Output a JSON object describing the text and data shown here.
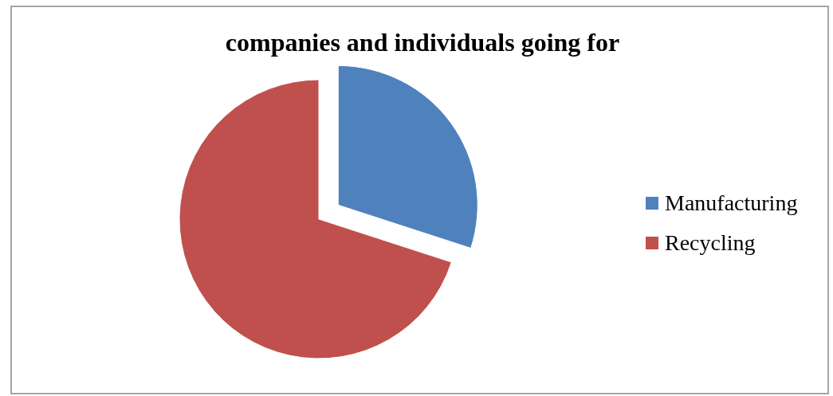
{
  "chart_data": {
    "type": "pie",
    "title": "companies and individuals going for",
    "categories": [
      "Manufacturing",
      "Recycling"
    ],
    "values": [
      30,
      70
    ],
    "colors": [
      "#4f81bd",
      "#c0504d"
    ],
    "legend": "right"
  }
}
